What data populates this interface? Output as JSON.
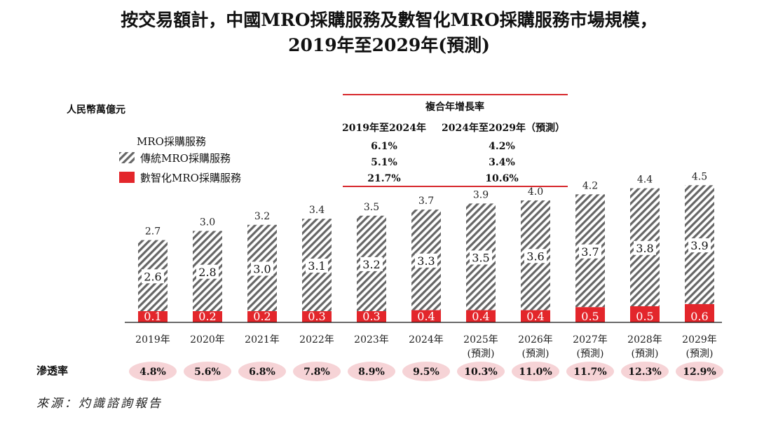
{
  "title_line1": "按交易額計，中國MRO採購服務及數智化MRO採購服務市場規模，",
  "title_line2": "2019年至2029年(預測)",
  "unit_label": "人民幣萬億元",
  "legend": {
    "heading": "MRO採購服務",
    "traditional": "傳統MRO採購服務",
    "digital": "數智化MRO採購服務"
  },
  "cagr": {
    "header": "複合年增長率",
    "col1_header": "2019年至2024年",
    "col2_header": "2024年至2029年（預測）",
    "col1_values": [
      "6.1%",
      "5.1%",
      "21.7%"
    ],
    "col2_values": [
      "4.2%",
      "3.4%",
      "10.6%"
    ]
  },
  "penetration_label": "滲透率",
  "source": "來源：灼識諮詢報告",
  "colors": {
    "red": "#e3262b",
    "hatch": "#666666",
    "pill": "#f6d3d6",
    "red_line": "#d7282d"
  },
  "chart_data": {
    "type": "bar",
    "stacked": true,
    "categories": [
      "2019年",
      "2020年",
      "2021年",
      "2022年",
      "2023年",
      "2024年",
      "2025年",
      "2026年",
      "2027年",
      "2028年",
      "2029年"
    ],
    "category_sublabels": [
      "",
      "",
      "",
      "",
      "",
      "",
      "(預測)",
      "(預測)",
      "(預測)",
      "(預測)",
      "(預測)"
    ],
    "series": [
      {
        "name": "數智化MRO採購服務",
        "values": [
          0.1,
          0.2,
          0.2,
          0.3,
          0.3,
          0.4,
          0.4,
          0.4,
          0.5,
          0.5,
          0.6
        ]
      },
      {
        "name": "傳統MRO採購服務",
        "values": [
          2.6,
          2.8,
          3.0,
          3.1,
          3.2,
          3.3,
          3.5,
          3.6,
          3.7,
          3.8,
          3.9
        ]
      }
    ],
    "totals": [
      2.7,
      3.0,
      3.2,
      3.4,
      3.5,
      3.7,
      3.9,
      4.0,
      4.2,
      4.4,
      4.5
    ],
    "total_labels": [
      "2.7",
      "3.0",
      "3.2",
      "3.4",
      "3.5",
      "3.7",
      "3.9",
      "4.0",
      "4.2",
      "4.4",
      "4.5"
    ],
    "digital_labels": [
      "0.1",
      "0.2",
      "0.2",
      "0.3",
      "0.3",
      "0.4",
      "0.4",
      "0.4",
      "0.5",
      "0.5",
      "0.6"
    ],
    "traditional_labels": [
      "2.6",
      "2.8",
      "3.0",
      "3.1",
      "3.2",
      "3.3",
      "3.5",
      "3.6",
      "3.7",
      "3.8",
      "3.9"
    ],
    "penetration_rates": [
      "4.8%",
      "5.6%",
      "6.8%",
      "7.8%",
      "8.9%",
      "9.5%",
      "10.3%",
      "11.0%",
      "11.7%",
      "12.3%",
      "12.9%"
    ],
    "ylabel": "人民幣萬億元"
  }
}
